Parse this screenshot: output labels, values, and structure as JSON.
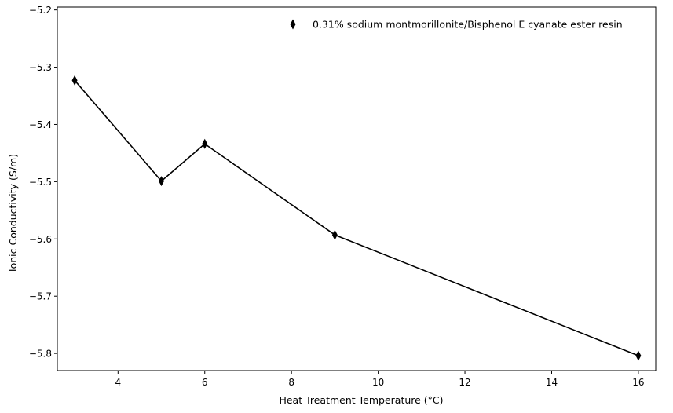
{
  "chart_data": {
    "type": "line",
    "xlabel": "Heat Treatment Temperature (°C)",
    "ylabel": "Ionic Conductivity (S/m)",
    "xlim": [
      2.6,
      16.4
    ],
    "ylim": [
      -5.83,
      -5.195
    ],
    "xticks": [
      4,
      6,
      8,
      10,
      12,
      14,
      16
    ],
    "yticks": [
      -5.8,
      -5.7,
      -5.6,
      -5.5,
      -5.4,
      -5.3,
      -5.2
    ],
    "xtick_labels": [
      "4",
      "6",
      "8",
      "10",
      "12",
      "14",
      "16"
    ],
    "ytick_labels": [
      "−5.8",
      "−5.7",
      "−5.6",
      "−5.5",
      "−5.4",
      "−5.3",
      "−5.2"
    ],
    "grid": false,
    "legend_position": "upper-right",
    "series": [
      {
        "name": "0.31% sodium montmorillonite/Bisphenol E cyanate ester resin",
        "color": "#000000",
        "marker": "thin-diamond",
        "x": [
          3,
          5,
          6,
          9,
          16
        ],
        "y": [
          -5.323,
          -5.499,
          -5.434,
          -5.593,
          -5.804
        ]
      }
    ]
  }
}
